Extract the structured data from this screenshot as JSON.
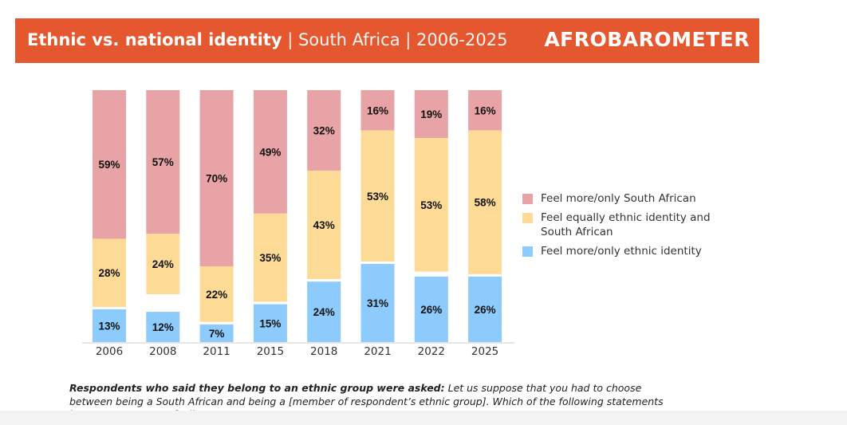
{
  "header": {
    "title_bold": "Ethnic vs. national identity",
    "title_rest": " | South Africa | 2006-2025",
    "logo": "AFROBAROMETER",
    "color": "#e5572f"
  },
  "chart_data": {
    "type": "bar",
    "stacked": true,
    "categories": [
      "2006",
      "2008",
      "2011",
      "2015",
      "2018",
      "2021",
      "2022",
      "2025"
    ],
    "series": [
      {
        "name": "Feel more/only ethnic identity",
        "color": "#8ccbfb",
        "values": [
          13,
          12,
          7,
          15,
          24,
          31,
          26,
          26
        ]
      },
      {
        "name": "Feel equally ethnic identity and South African",
        "color": "#fddb96",
        "values": [
          28,
          24,
          22,
          35,
          43,
          53,
          53,
          58
        ]
      },
      {
        "name": "Feel more/only South African",
        "color": "#e8a3a6",
        "values": [
          59,
          57,
          70,
          49,
          32,
          16,
          19,
          16
        ]
      }
    ],
    "ylim": [
      0,
      100
    ],
    "grid": false,
    "legend_position": "right",
    "data_labels": true
  },
  "legend": [
    {
      "label": "Feel more/only South African",
      "color": "#e8a3a6"
    },
    {
      "label": "Feel equally ethnic identity and South African",
      "color": "#fddb96"
    },
    {
      "label": "Feel more/only ethnic identity",
      "color": "#8ccbfb"
    }
  ],
  "note": {
    "bold": "Respondents who said they belong to an ethnic group were asked:",
    "text": " Let us suppose that you had to choose between being a South African and being a [member of respondent’s ethnic group]. Which of the following statements best expresses your feelings?"
  }
}
